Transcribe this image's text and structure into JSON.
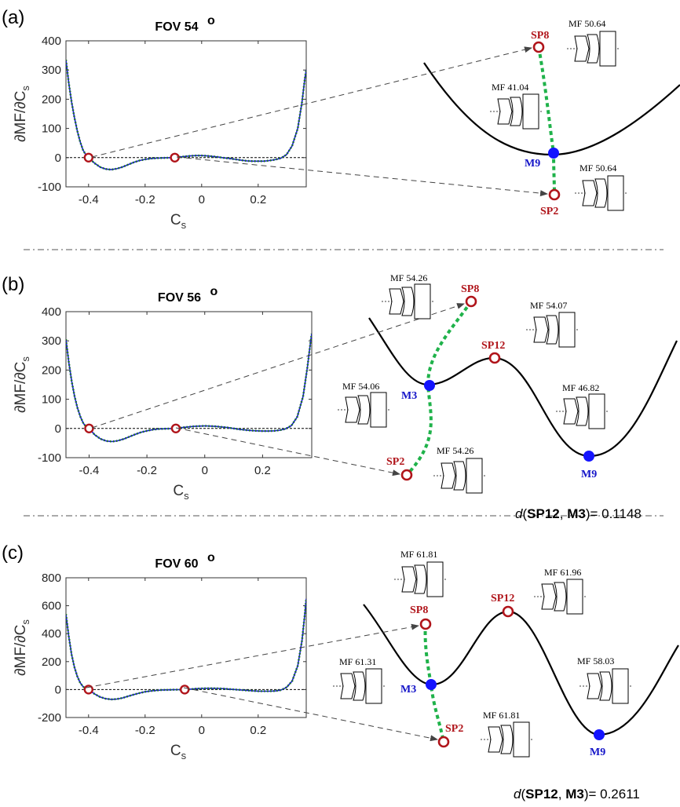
{
  "chart_data": [
    {
      "type": "line",
      "panel": "(a)",
      "title": "FOV 54",
      "title_superscript": "o",
      "xlabel": "C",
      "xlabel_sub": "s",
      "ylabel": "∂MF/∂C",
      "ylabel_sub": "s",
      "xlim": [
        -0.48,
        0.37
      ],
      "ylim": [
        -100,
        400
      ],
      "xticks": [
        -0.4,
        -0.2,
        0,
        0.2
      ],
      "xtick_labels": [
        "-0.4",
        "-0.2",
        "0",
        "0.2"
      ],
      "yticks": [
        -100,
        0,
        100,
        200,
        300,
        400
      ],
      "ytick_labels": [
        "-100",
        "0",
        "100",
        "200",
        "300",
        "400"
      ],
      "series": [
        {
          "values": [
            [
              -0.48,
              335
            ],
            [
              -0.47,
              255
            ],
            [
              -0.46,
              190
            ],
            [
              -0.45,
              137
            ],
            [
              -0.44,
              92
            ],
            [
              -0.43,
              55
            ],
            [
              -0.42,
              27
            ],
            [
              -0.41,
              10
            ],
            [
              -0.4,
              0
            ],
            [
              -0.38,
              -18
            ],
            [
              -0.36,
              -32
            ],
            [
              -0.34,
              -39
            ],
            [
              -0.32,
              -41
            ],
            [
              -0.3,
              -38
            ],
            [
              -0.28,
              -32
            ],
            [
              -0.26,
              -24
            ],
            [
              -0.24,
              -16
            ],
            [
              -0.22,
              -10
            ],
            [
              -0.2,
              -6
            ],
            [
              -0.18,
              -3
            ],
            [
              -0.16,
              -2
            ],
            [
              -0.14,
              -1
            ],
            [
              -0.12,
              -0.5
            ],
            [
              -0.1,
              0
            ],
            [
              -0.08,
              2
            ],
            [
              -0.06,
              4
            ],
            [
              -0.04,
              6
            ],
            [
              -0.02,
              7
            ],
            [
              0.0,
              7
            ],
            [
              0.02,
              6
            ],
            [
              0.04,
              4
            ],
            [
              0.06,
              2
            ],
            [
              0.08,
              -1
            ],
            [
              0.1,
              -3
            ],
            [
              0.12,
              -6
            ],
            [
              0.14,
              -9
            ],
            [
              0.16,
              -11
            ],
            [
              0.18,
              -12
            ],
            [
              0.2,
              -12
            ],
            [
              0.22,
              -12
            ],
            [
              0.24,
              -10
            ],
            [
              0.26,
              -7
            ],
            [
              0.28,
              -2
            ],
            [
              0.3,
              10
            ],
            [
              0.32,
              40
            ],
            [
              0.34,
              100
            ],
            [
              0.355,
              190
            ],
            [
              0.365,
              270
            ],
            [
              0.37,
              300
            ]
          ]
        }
      ],
      "zeros": [
        -0.4,
        -0.095
      ],
      "dashed_zero_line": true
    },
    {
      "type": "line",
      "panel": "(b)",
      "title": "FOV 56",
      "title_superscript": "o",
      "xlabel": "C",
      "xlabel_sub": "s",
      "ylabel": "∂MF/∂C",
      "ylabel_sub": "s",
      "xlim": [
        -0.48,
        0.37
      ],
      "ylim": [
        -100,
        400
      ],
      "xticks": [
        -0.4,
        -0.2,
        0,
        0.2
      ],
      "xtick_labels": [
        "-0.4",
        "-0.2",
        "0",
        "0.2"
      ],
      "yticks": [
        -100,
        0,
        100,
        200,
        300,
        400
      ],
      "ytick_labels": [
        "-100",
        "0",
        "100",
        "200",
        "300",
        "400"
      ],
      "series": [
        {
          "values": [
            [
              -0.48,
              305
            ],
            [
              -0.47,
              225
            ],
            [
              -0.46,
              160
            ],
            [
              -0.45,
              110
            ],
            [
              -0.44,
              70
            ],
            [
              -0.43,
              40
            ],
            [
              -0.42,
              18
            ],
            [
              -0.41,
              5
            ],
            [
              -0.4,
              0
            ],
            [
              -0.38,
              -22
            ],
            [
              -0.36,
              -36
            ],
            [
              -0.34,
              -43
            ],
            [
              -0.32,
              -45
            ],
            [
              -0.3,
              -42
            ],
            [
              -0.28,
              -36
            ],
            [
              -0.26,
              -28
            ],
            [
              -0.24,
              -20
            ],
            [
              -0.22,
              -13
            ],
            [
              -0.2,
              -8
            ],
            [
              -0.18,
              -4
            ],
            [
              -0.16,
              -2
            ],
            [
              -0.14,
              -1
            ],
            [
              -0.12,
              -0.5
            ],
            [
              -0.1,
              0
            ],
            [
              -0.08,
              3
            ],
            [
              -0.06,
              5
            ],
            [
              -0.04,
              7
            ],
            [
              -0.02,
              8
            ],
            [
              0.0,
              9
            ],
            [
              0.02,
              8
            ],
            [
              0.04,
              7
            ],
            [
              0.06,
              5
            ],
            [
              0.08,
              3
            ],
            [
              0.1,
              0
            ],
            [
              0.12,
              -3
            ],
            [
              0.14,
              -5
            ],
            [
              0.16,
              -7
            ],
            [
              0.18,
              -8
            ],
            [
              0.2,
              -9
            ],
            [
              0.22,
              -9
            ],
            [
              0.24,
              -8
            ],
            [
              0.26,
              -6
            ],
            [
              0.28,
              -1
            ],
            [
              0.3,
              10
            ],
            [
              0.32,
              40
            ],
            [
              0.34,
              110
            ],
            [
              0.355,
              210
            ],
            [
              0.365,
              290
            ],
            [
              0.37,
              325
            ]
          ]
        }
      ],
      "zeros": [
        -0.4,
        -0.1
      ],
      "dashed_zero_line": true
    },
    {
      "type": "line",
      "panel": "(c)",
      "title": "FOV 60",
      "title_superscript": "o",
      "xlabel": "C",
      "xlabel_sub": "s",
      "ylabel": "∂MF/∂C",
      "ylabel_sub": "s",
      "xlim": [
        -0.48,
        0.37
      ],
      "ylim": [
        -200,
        800
      ],
      "xticks": [
        -0.4,
        -0.2,
        0,
        0.2
      ],
      "xtick_labels": [
        "-0.4",
        "-0.2",
        "0",
        "0.2"
      ],
      "yticks": [
        -200,
        0,
        200,
        400,
        600,
        800
      ],
      "ytick_labels": [
        "-200",
        "0",
        "200",
        "400",
        "600",
        "800"
      ],
      "series": [
        {
          "values": [
            [
              -0.48,
              540
            ],
            [
              -0.47,
              380
            ],
            [
              -0.46,
              250
            ],
            [
              -0.45,
              160
            ],
            [
              -0.44,
              95
            ],
            [
              -0.43,
              50
            ],
            [
              -0.42,
              22
            ],
            [
              -0.41,
              6
            ],
            [
              -0.4,
              0
            ],
            [
              -0.38,
              -30
            ],
            [
              -0.36,
              -52
            ],
            [
              -0.34,
              -65
            ],
            [
              -0.32,
              -70
            ],
            [
              -0.3,
              -68
            ],
            [
              -0.28,
              -60
            ],
            [
              -0.26,
              -48
            ],
            [
              -0.24,
              -36
            ],
            [
              -0.22,
              -25
            ],
            [
              -0.2,
              -16
            ],
            [
              -0.18,
              -10
            ],
            [
              -0.16,
              -6
            ],
            [
              -0.14,
              -3
            ],
            [
              -0.12,
              -2
            ],
            [
              -0.1,
              -1
            ],
            [
              -0.08,
              -0.5
            ],
            [
              -0.06,
              0
            ],
            [
              -0.04,
              3
            ],
            [
              -0.02,
              6
            ],
            [
              0.0,
              8
            ],
            [
              0.02,
              9
            ],
            [
              0.04,
              9
            ],
            [
              0.06,
              8
            ],
            [
              0.08,
              6
            ],
            [
              0.1,
              3
            ],
            [
              0.12,
              0
            ],
            [
              0.14,
              -3
            ],
            [
              0.16,
              -6
            ],
            [
              0.18,
              -9
            ],
            [
              0.2,
              -11
            ],
            [
              0.22,
              -12
            ],
            [
              0.24,
              -12
            ],
            [
              0.26,
              -10
            ],
            [
              0.28,
              -4
            ],
            [
              0.3,
              15
            ],
            [
              0.32,
              60
            ],
            [
              0.34,
              170
            ],
            [
              0.355,
              350
            ],
            [
              0.365,
              540
            ],
            [
              0.37,
              650
            ]
          ]
        }
      ],
      "zeros": [
        -0.4,
        -0.06
      ],
      "dashed_zero_line": true
    }
  ],
  "landscapes": [
    {
      "panel": "(a)",
      "points": [
        {
          "label": "SP8",
          "kind": "saddle",
          "mf": "MF 50.64"
        },
        {
          "label": "M9",
          "kind": "minimum",
          "mf": "MF 41.04"
        },
        {
          "label": "SP2",
          "kind": "saddle",
          "mf": "MF 50.64"
        }
      ],
      "distance_text": ""
    },
    {
      "panel": "(b)",
      "points": [
        {
          "label": "SP8",
          "kind": "saddle",
          "mf": "MF 54.26"
        },
        {
          "label": "SP12",
          "kind": "saddle",
          "mf": "MF 54.07"
        },
        {
          "label": "M3",
          "kind": "minimum",
          "mf": "MF 54.06"
        },
        {
          "label": "M9",
          "kind": "minimum",
          "mf": "MF 46.82"
        },
        {
          "label": "SP2",
          "kind": "saddle",
          "mf": "MF 54.26"
        }
      ],
      "distance_parts": [
        "d",
        "(",
        "SP12",
        ", ",
        "M3",
        ")= 0.1148"
      ]
    },
    {
      "panel": "(c)",
      "points": [
        {
          "label": "SP8",
          "kind": "saddle",
          "mf": "MF 61.81"
        },
        {
          "label": "SP12",
          "kind": "saddle",
          "mf": "MF 61.96"
        },
        {
          "label": "M3",
          "kind": "minimum",
          "mf": "MF 61.31"
        },
        {
          "label": "M9",
          "kind": "minimum",
          "mf": "MF 58.03"
        },
        {
          "label": "SP2",
          "kind": "saddle",
          "mf": "MF 61.81"
        }
      ],
      "distance_parts": [
        "d",
        "(",
        "SP12",
        ", ",
        "M3",
        ")= 0.2611"
      ]
    }
  ],
  "colors": {
    "curve_blue": "#1a1ad6",
    "curve_green_dotted": "#1e7a1e",
    "saddle_red": "#b0141a",
    "minimum_blue": "#1414ff",
    "path_green": "#1fb24a",
    "arrow_gray": "#444444"
  }
}
